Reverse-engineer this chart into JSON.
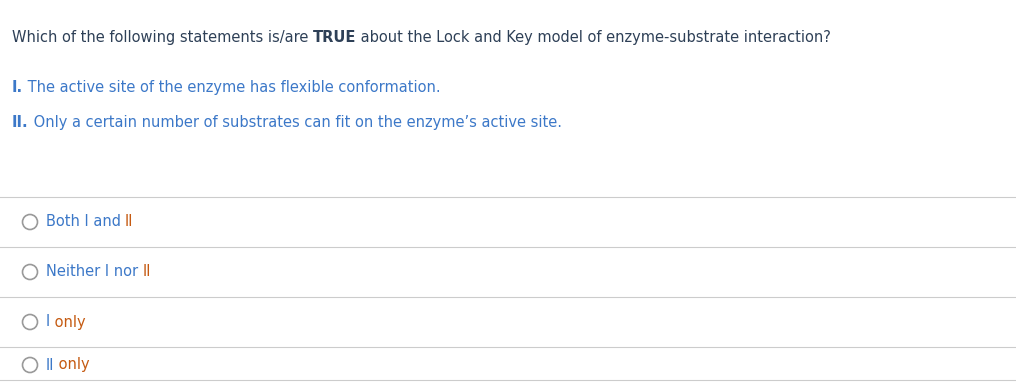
{
  "bg_color": "#ffffff",
  "question_color": "#2E4057",
  "statement_color": "#3C78C8",
  "orange_color": "#C55A11",
  "divider_color": "#CCCCCC",
  "circle_color": "#999999",
  "before_true": "Which of the following statements is/are ",
  "true_word": "TRUE",
  "after_true": " about the Lock and Key model of enzyme-substrate interaction?",
  "statement1_bold": "I.",
  "statement1_rest": " The active site of the enzyme has flexible conformation.",
  "statement2_bold": "II.",
  "statement2_rest": " Only a certain number of substrates can fit on the enzyme’s active site.",
  "options": [
    [
      {
        "text": "Both I and ",
        "color": "#3C78C8",
        "bold": false
      },
      {
        "text": "II",
        "color": "#C55A11",
        "bold": false
      }
    ],
    [
      {
        "text": "Neither I nor ",
        "color": "#3C78C8",
        "bold": false
      },
      {
        "text": "II",
        "color": "#C55A11",
        "bold": false
      }
    ],
    [
      {
        "text": "I",
        "color": "#3C78C8",
        "bold": false
      },
      {
        "text": " only",
        "color": "#C55A11",
        "bold": false
      }
    ],
    [
      {
        "text": "II",
        "color": "#3C78C8",
        "bold": false
      },
      {
        "text": " only",
        "color": "#C55A11",
        "bold": false
      }
    ]
  ],
  "figsize": [
    10.16,
    3.82
  ],
  "dpi": 100,
  "fontsize": 10.5,
  "fontsize_small": 10.5
}
